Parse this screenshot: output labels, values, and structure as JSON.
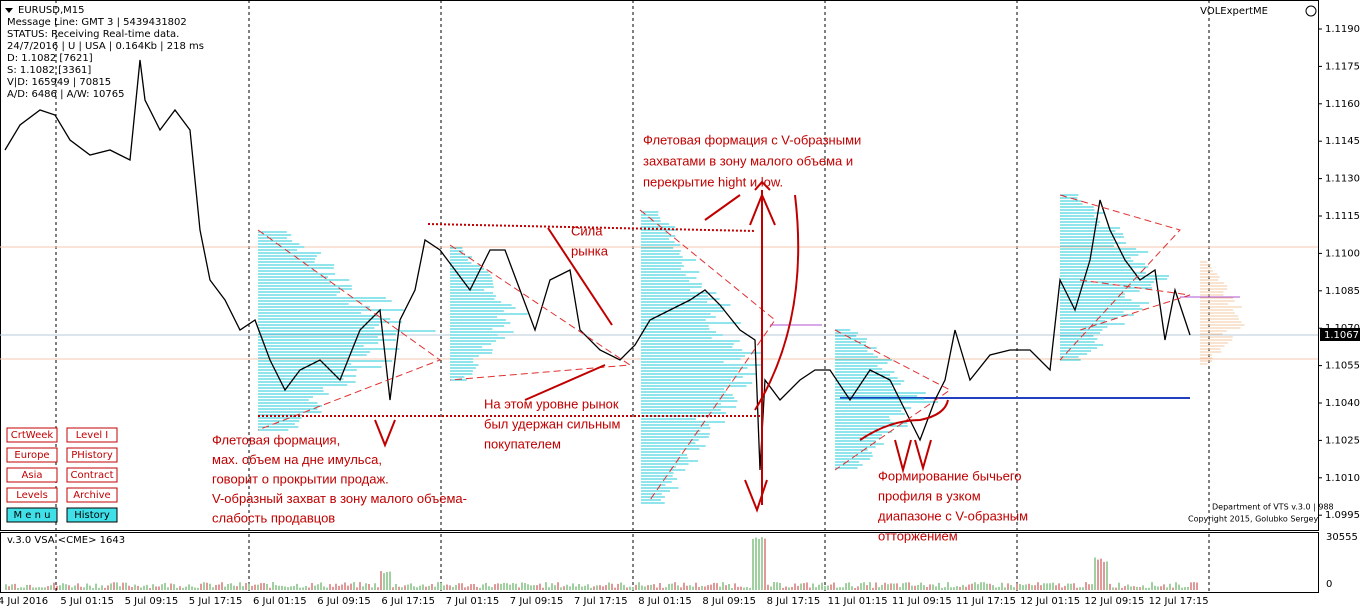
{
  "header": {
    "symbol": "EURUSD,M15",
    "lines": [
      "Message Line: GMT 3 | 5439431802",
      "STATUS:  Receiving Real-time data.",
      "24/7/2016 | U | USA | 0.164Kb | 218 ms",
      "D: 1.1082 [7621]",
      "S: 1.1082 [3361]",
      "V|D: 165949 | 70815",
      "A/D: 6486 | A/W: 10765"
    ]
  },
  "indicator": "VOLExpertME",
  "price_axis": {
    "labels": [
      "1.1190",
      "1.1175",
      "1.1160",
      "1.1145",
      "1.1130",
      "1.1115",
      "1.1100",
      "1.1085",
      "1.1070",
      "1.1055",
      "1.1040",
      "1.1025",
      "1.1010",
      "1.0995"
    ],
    "current": "1.1067"
  },
  "time_axis": {
    "labels": [
      "4 Jul 2016",
      "5 Jul 01:15",
      "5 Jul 09:15",
      "5 Jul 17:15",
      "6 Jul 01:15",
      "6 Jul 09:15",
      "6 Jul 17:15",
      "7 Jul 01:15",
      "7 Jul 09:15",
      "7 Jul 17:15",
      "8 Jul 01:15",
      "8 Jul 09:15",
      "8 Jul 17:15",
      "11 Jul 01:15",
      "11 Jul 09:15",
      "11 Jul 17:15",
      "12 Jul 01:15",
      "12 Jul 09:15",
      "12 Jul 17:15"
    ]
  },
  "buttons": [
    "CrtWeek",
    "Level I",
    "Europe",
    "PHistory",
    "Asia",
    "Contract",
    "Levels",
    "Archive",
    "M e n u",
    "History"
  ],
  "annotations": [
    [
      "Флетовая формация с V-образными",
      "захватами в зону малого объема и",
      "перекрытие hight и low."
    ],
    [
      "Сила",
      "рынка"
    ],
    [
      "На этом уровне рынок",
      "был удержан сильным",
      "покупателем"
    ],
    [
      "Флетовая формация,",
      "мах. объем на дне имульса,",
      "говорит о прокрытии продаж.",
      "V-образный захват в зону малого объема-",
      "слабость продавцов"
    ],
    [
      "Формирование бычьего",
      "профиля в узком",
      "диапазоне с V-образным",
      "отторжением"
    ]
  ],
  "footer": [
    "Department of VTS  v.3.0 | 988",
    "Copyright 2015, Golubko Sergey"
  ],
  "volume_panel": {
    "label": "v.3.0 VSA <CME> 1643",
    "axis": [
      "30555",
      "0"
    ]
  }
}
